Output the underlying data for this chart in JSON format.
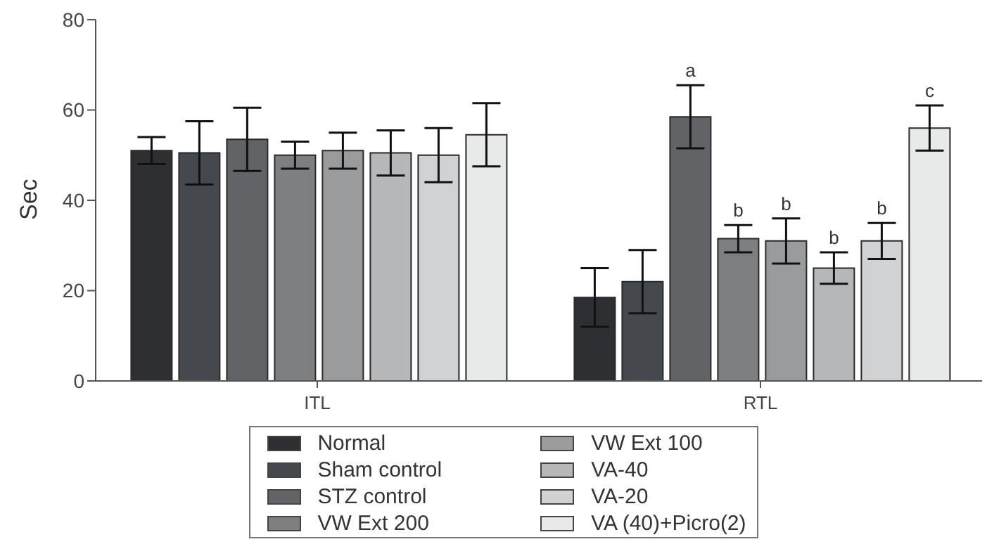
{
  "chart_data": {
    "type": "bar",
    "ylabel": "Sec",
    "categories": [
      "ITL",
      "RTL"
    ],
    "ylim": [
      0,
      80
    ],
    "yticks": [
      0,
      20,
      40,
      60,
      80
    ],
    "grid": false,
    "legend": "bottom",
    "series": [
      {
        "name": "Normal",
        "color": "#2e2f33",
        "values": [
          51,
          18.5
        ],
        "errors": [
          3,
          6.5
        ]
      },
      {
        "name": "Sham control",
        "color": "#45484c",
        "values": [
          50.5,
          22
        ],
        "errors": [
          7,
          7
        ]
      },
      {
        "name": "STZ control",
        "color": "#616366",
        "values": [
          53.5,
          58.5
        ],
        "errors": [
          7,
          7
        ],
        "value_labels": [
          null,
          "a"
        ]
      },
      {
        "name": "VW Ext 200",
        "color": "#7d7f81",
        "values": [
          50,
          31.5
        ],
        "errors": [
          3,
          3
        ],
        "value_labels": [
          null,
          "b"
        ]
      },
      {
        "name": "VW Ext 100",
        "color": "#999b9d",
        "values": [
          51,
          31
        ],
        "errors": [
          4,
          5
        ],
        "value_labels": [
          null,
          "b"
        ]
      },
      {
        "name": "VA-40",
        "color": "#b5b7b8",
        "values": [
          50.5,
          25
        ],
        "errors": [
          5,
          3.5
        ],
        "value_labels": [
          null,
          "b"
        ]
      },
      {
        "name": "VA-20",
        "color": "#d1d2d3",
        "values": [
          50,
          31
        ],
        "errors": [
          6,
          4
        ],
        "value_labels": [
          null,
          "b"
        ]
      },
      {
        "name": "VA (40)+Picro(2)",
        "color": "#e8e9e9",
        "values": [
          54.5,
          56
        ],
        "errors": [
          7,
          5
        ],
        "value_labels": [
          null,
          "c"
        ]
      }
    ]
  }
}
